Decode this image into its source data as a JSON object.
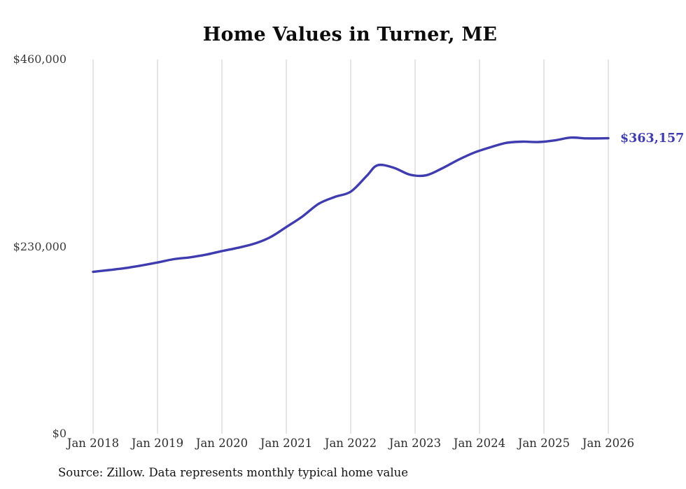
{
  "title": "Home Values in Turner, ME",
  "end_label": "$363,157",
  "source_note": "Source: Zillow. Data represents monthly typical home value",
  "chart_data": {
    "type": "line",
    "title": "Home Values in Turner, ME",
    "xlabel": "",
    "ylabel": "",
    "ylim": [
      0,
      460000
    ],
    "xlim_years": [
      2018,
      2026
    ],
    "grid": "vertical-only",
    "grid_color": "#cbcbcb",
    "line_color": "#3f3caf",
    "end_label_color": "#3f3caf",
    "x_tick_labels": [
      "Jan 2018",
      "Jan 2019",
      "Jan 2020",
      "Jan 2021",
      "Jan 2022",
      "Jan 2023",
      "Jan 2024",
      "Jan 2025",
      "Jan 2026"
    ],
    "y_ticks": [
      {
        "value": 0,
        "label": "$0"
      },
      {
        "value": 230000,
        "label": "$230,000"
      },
      {
        "value": 460000,
        "label": "$460,000"
      }
    ],
    "series": [
      {
        "name": "Monthly typical home value",
        "final_value_label": "$363,157",
        "points": [
          [
            "2018-01",
            199000
          ],
          [
            "2018-04",
            201200
          ],
          [
            "2018-07",
            203600
          ],
          [
            "2018-10",
            206800
          ],
          [
            "2019-01",
            210500
          ],
          [
            "2019-04",
            214500
          ],
          [
            "2019-07",
            216800
          ],
          [
            "2019-10",
            220000
          ],
          [
            "2020-01",
            224500
          ],
          [
            "2020-04",
            228500
          ],
          [
            "2020-07",
            233500
          ],
          [
            "2020-10",
            241500
          ],
          [
            "2021-01",
            254000
          ],
          [
            "2021-04",
            267000
          ],
          [
            "2021-07",
            282500
          ],
          [
            "2021-10",
            291000
          ],
          [
            "2022-01",
            297500
          ],
          [
            "2022-04",
            317000
          ],
          [
            "2022-06",
            330000
          ],
          [
            "2022-09",
            327000
          ],
          [
            "2022-12",
            318500
          ],
          [
            "2023-03",
            317500
          ],
          [
            "2023-06",
            326000
          ],
          [
            "2023-09",
            336500
          ],
          [
            "2023-12",
            345500
          ],
          [
            "2024-03",
            352000
          ],
          [
            "2024-06",
            357500
          ],
          [
            "2024-09",
            359000
          ],
          [
            "2024-12",
            358500
          ],
          [
            "2025-03",
            360500
          ],
          [
            "2025-06",
            364000
          ],
          [
            "2025-09",
            363000
          ],
          [
            "2026-01",
            363157
          ]
        ]
      }
    ]
  }
}
